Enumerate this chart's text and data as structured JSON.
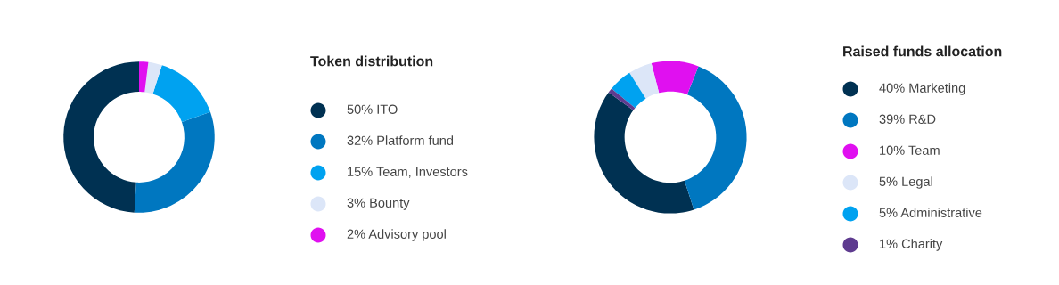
{
  "chart_data": [
    {
      "type": "donut",
      "title": "Token distribution",
      "categories": [
        "ITO",
        "Platform fund",
        "Team, Investors",
        "Bounty",
        "Advisory pool"
      ],
      "values": [
        50,
        32,
        15,
        3,
        2
      ],
      "value_labels": [
        "50%",
        "32%",
        "15%",
        "3%",
        "2%"
      ],
      "colors": [
        "#003152",
        "#0077c0",
        "#00a2f0",
        "#dce6f8",
        "#e010f0"
      ],
      "legend": "right"
    },
    {
      "type": "donut",
      "title": "Raised funds allocation",
      "categories": [
        "Marketing",
        "R&D",
        "Team",
        "Legal",
        "Administrative",
        "Charity"
      ],
      "values": [
        40,
        39,
        10,
        5,
        5,
        1
      ],
      "value_labels": [
        "40%",
        "39%",
        "10%",
        "5%",
        "5%",
        "1%"
      ],
      "colors": [
        "#003152",
        "#0077c0",
        "#e010f0",
        "#dce6f8",
        "#00a2f0",
        "#5e3b8f"
      ],
      "legend": "right"
    }
  ]
}
